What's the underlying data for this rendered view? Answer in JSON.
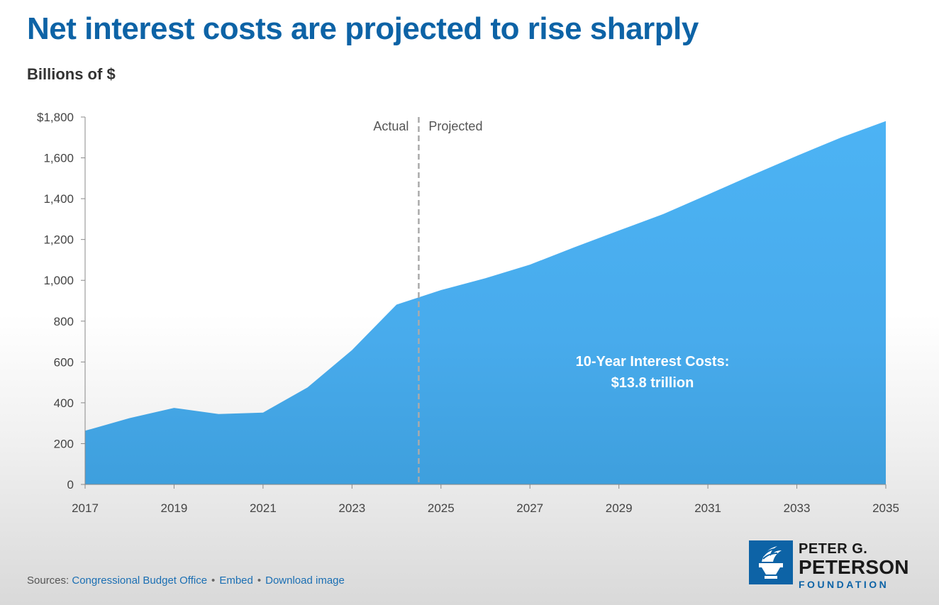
{
  "title": "Net interest costs are projected to rise sharply",
  "subtitle": "Billions of $",
  "chart_data": {
    "type": "area",
    "x": [
      2017,
      2018,
      2019,
      2020,
      2021,
      2022,
      2023,
      2024,
      2025,
      2026,
      2027,
      2028,
      2029,
      2030,
      2031,
      2032,
      2033,
      2034,
      2035
    ],
    "series": [
      {
        "values": [
          263,
          325,
          375,
          345,
          352,
          475,
          658,
          881,
          952,
          1010,
          1077,
          1162,
          1244,
          1325,
          1420,
          1516,
          1610,
          1700,
          1780
        ]
      }
    ],
    "xlim": [
      2017,
      2035
    ],
    "ylim": [
      0,
      1800
    ],
    "y_ticks": [
      "$1,800",
      "1,600",
      "1,400",
      "1,200",
      "1,000",
      "800",
      "600",
      "400",
      "200",
      "0"
    ],
    "y_tick_values": [
      1800,
      1600,
      1400,
      1200,
      1000,
      800,
      600,
      400,
      200,
      0
    ],
    "x_ticks": [
      "2017",
      "2019",
      "2021",
      "2023",
      "2025",
      "2027",
      "2029",
      "2031",
      "2033",
      "2035"
    ],
    "x_tick_values": [
      2017,
      2019,
      2021,
      2023,
      2025,
      2027,
      2029,
      2031,
      2033,
      2035
    ],
    "divider_x": 2024.5,
    "period_labels": {
      "actual": "Actual",
      "projected": "Projected"
    },
    "annotation": {
      "line1": "10-Year Interest Costs:",
      "line2": "$13.8 trillion"
    },
    "area_color": "#4aafef",
    "grid": false
  },
  "footer": {
    "sources_prefix": "Sources:",
    "source_link": "Congressional Budget Office",
    "embed": "Embed",
    "download": "Download image"
  },
  "logo": {
    "line1": "PETER G.",
    "line2": "PETERSON",
    "line3": "FOUNDATION"
  },
  "colors": {
    "title": "#0d63a6",
    "area": "#4aafef",
    "logo": "#0d63a6"
  }
}
